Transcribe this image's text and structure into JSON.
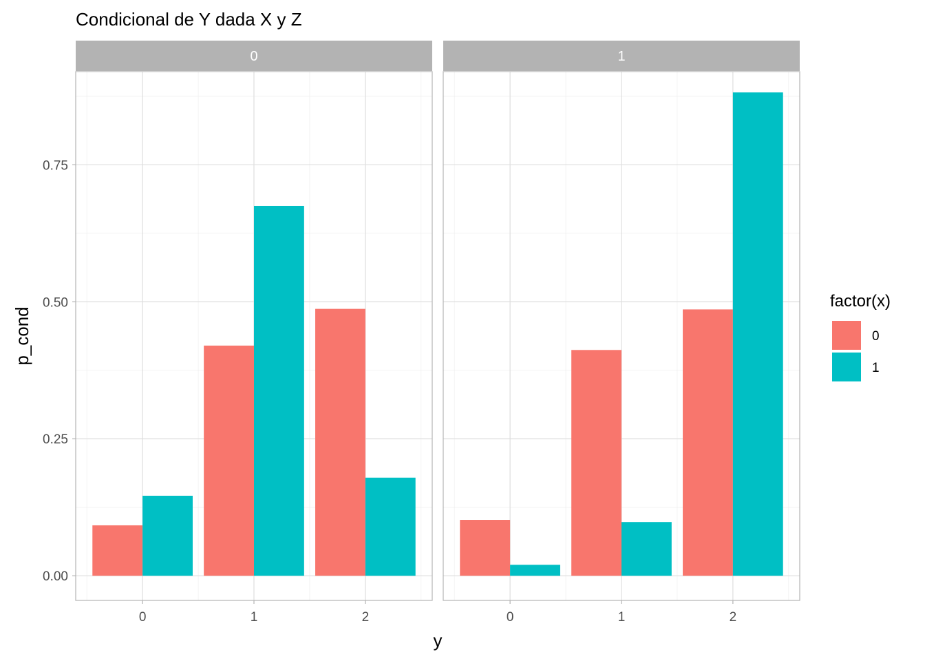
{
  "chart_data": {
    "type": "bar",
    "title": "Condicional de Y dada X y Z",
    "xlabel": "y",
    "ylabel": "p_cond",
    "ylim": [
      -0.045,
      0.92
    ],
    "yticks": [
      0.0,
      0.25,
      0.5,
      0.75
    ],
    "ytick_labels": [
      "0.00",
      "0.25",
      "0.50",
      "0.75"
    ],
    "categories": [
      "0",
      "1",
      "2"
    ],
    "legend": {
      "title": "factor(x)",
      "position": "right",
      "entries": [
        {
          "label": "0",
          "color": "#F8766D"
        },
        {
          "label": "1",
          "color": "#00BFC4"
        }
      ]
    },
    "facets": [
      {
        "strip": "0",
        "series": [
          {
            "name": "0",
            "color": "#F8766D",
            "values": [
              0.092,
              0.42,
              0.487
            ]
          },
          {
            "name": "1",
            "color": "#00BFC4",
            "values": [
              0.146,
              0.675,
              0.179
            ]
          }
        ]
      },
      {
        "strip": "1",
        "series": [
          {
            "name": "0",
            "color": "#F8766D",
            "values": [
              0.102,
              0.412,
              0.486
            ]
          },
          {
            "name": "1",
            "color": "#00BFC4",
            "values": [
              0.02,
              0.098,
              0.882
            ]
          }
        ]
      }
    ]
  }
}
